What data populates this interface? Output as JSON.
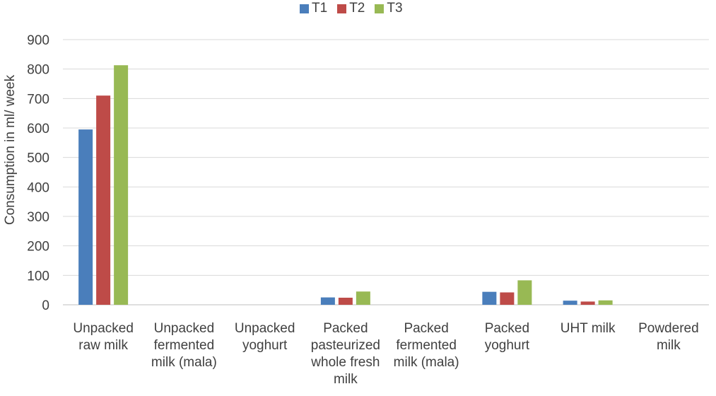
{
  "chart_data": {
    "type": "bar",
    "title": "",
    "xlabel": "",
    "ylabel": "Consumption in ml/ week",
    "ylim": [
      0,
      900
    ],
    "ytick_step": 100,
    "grid": true,
    "legend_position": "top",
    "categories": [
      [
        "Unpacked",
        "raw milk"
      ],
      [
        "Unpacked",
        "fermented",
        "milk (mala)"
      ],
      [
        "Unpacked",
        "yoghurt"
      ],
      [
        "Packed",
        "pasteurized",
        "whole fresh",
        "milk"
      ],
      [
        "Packed",
        "fermented",
        "milk (mala)"
      ],
      [
        "Packed",
        "yoghurt"
      ],
      [
        "UHT milk"
      ],
      [
        "Powdered",
        "milk"
      ]
    ],
    "series": [
      {
        "name": "T1",
        "color": "#4a7ebb",
        "values": [
          595,
          0,
          0,
          25,
          0,
          44,
          14,
          0
        ]
      },
      {
        "name": "T2",
        "color": "#be4b48",
        "values": [
          710,
          0,
          0,
          24,
          0,
          42,
          11,
          0
        ]
      },
      {
        "name": "T3",
        "color": "#98b954",
        "values": [
          813,
          0,
          0,
          45,
          0,
          83,
          15,
          0
        ]
      }
    ]
  }
}
